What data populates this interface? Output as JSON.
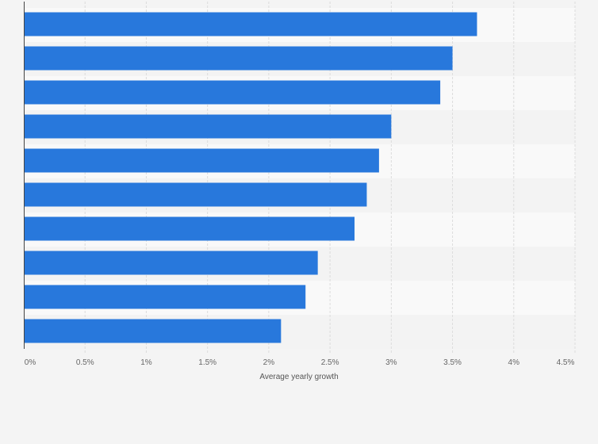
{
  "chart_data": {
    "type": "bar",
    "orientation": "horizontal",
    "categories": [
      "",
      "",
      "",
      "",
      "",
      "",
      "",
      "",
      "",
      ""
    ],
    "values": [
      3.7,
      3.5,
      3.4,
      3.0,
      2.9,
      2.8,
      2.7,
      2.4,
      2.3,
      2.1
    ],
    "title": "",
    "xlabel": "Average yearly growth",
    "ylabel": "",
    "xlim": [
      0,
      4.5
    ],
    "xticks": [
      0,
      0.5,
      1,
      1.5,
      2,
      2.5,
      3,
      3.5,
      4,
      4.5
    ],
    "xtick_labels": [
      "0%",
      "0.5%",
      "1%",
      "1.5%",
      "2%",
      "2.5%",
      "3%",
      "3.5%",
      "4%",
      "4.5%"
    ],
    "grid": "vertical",
    "legend": "none",
    "colors": {
      "bar": "#2878dc",
      "row_light": "#f9f9f9",
      "row_dark": "#f3f3f3",
      "grid": "#dcdcdc",
      "axis": "#444444",
      "background": "#f4f4f4"
    }
  }
}
